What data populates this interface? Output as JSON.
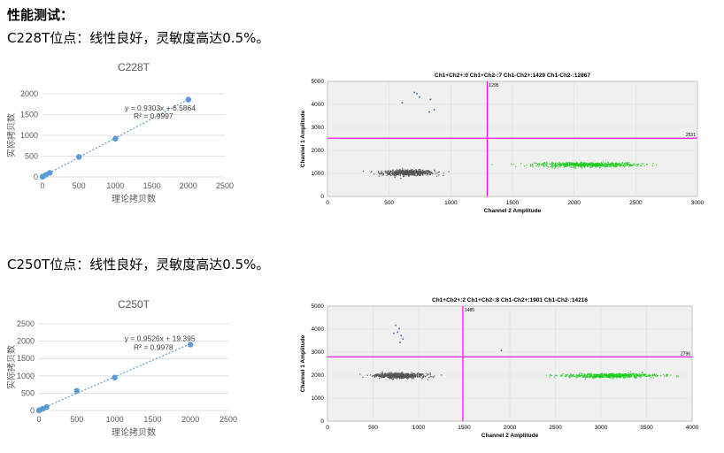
{
  "section_title": "性能测试：",
  "section1": {
    "line": "C228T位点：线性良好，灵敏度高达0.5%。"
  },
  "section2": {
    "line": "C250T位点：线性良好，灵敏度高达0.5%。"
  },
  "chart_data": [
    {
      "type": "scatter",
      "title": "C228T",
      "xlabel": "理论拷贝数",
      "ylabel": "实际拷贝数",
      "xlim": [
        0,
        2500
      ],
      "ylim": [
        0,
        2000
      ],
      "xticks": [
        "0",
        "500",
        "1000",
        "1500",
        "2000",
        "2500"
      ],
      "yticks": [
        "0",
        "500",
        "1000",
        "1500",
        "2000"
      ],
      "points": [
        [
          0,
          5
        ],
        [
          10,
          15
        ],
        [
          50,
          55
        ],
        [
          100,
          100
        ],
        [
          500,
          480
        ],
        [
          1000,
          920
        ],
        [
          2000,
          1860
        ]
      ],
      "trendline": {
        "slope": 0.9303,
        "intercept": 6.5864
      },
      "equation": "y = 0.9303x + 6.5864",
      "r2": "R² = 0.9997",
      "color": "#5b9bd5"
    },
    {
      "type": "scatter",
      "title": "C250T",
      "xlabel": "理论拷贝数",
      "ylabel": "实际拷贝数",
      "xlim": [
        0,
        2500
      ],
      "ylim": [
        0,
        2500
      ],
      "xticks": [
        "0",
        "500",
        "1000",
        "1500",
        "2000",
        "2500"
      ],
      "yticks": [
        "0",
        "500",
        "1000",
        "1500",
        "2000",
        "2500"
      ],
      "points": [
        [
          0,
          5
        ],
        [
          10,
          15
        ],
        [
          50,
          50
        ],
        [
          100,
          100
        ],
        [
          500,
          570
        ],
        [
          1000,
          950
        ],
        [
          2000,
          1900
        ]
      ],
      "trendline": {
        "slope": 0.9526,
        "intercept": 19.395
      },
      "equation": "y = 0.9526x + 19.395",
      "r2": "R² = 0.9978",
      "color": "#5b9bd5"
    },
    {
      "type": "scatter",
      "title": "Ch1+Ch2+:0  Ch1+Ch2-:7  Ch1-Ch2+:1429  Ch1-Ch2-:12867",
      "xlabel": "Channel 2 Amplitude",
      "ylabel": "Channel 1 Amplitude",
      "xlim": [
        0,
        3000
      ],
      "ylim": [
        0,
        5000
      ],
      "xticks": [
        "0",
        "500",
        "1000",
        "1500",
        "2000",
        "2500",
        "3000"
      ],
      "yticks": [
        "0",
        "1000",
        "2000",
        "3000",
        "4000",
        "5000"
      ],
      "threshold_x": 1295,
      "threshold_y": 2531,
      "threshold_x_label": "1295",
      "threshold_y_label": "2531",
      "clusters": [
        {
          "name": "Ch1-Ch2-",
          "cx": 650,
          "cy": 1050,
          "sx": 230,
          "sy": 130,
          "color": "#555555"
        },
        {
          "name": "Ch1-Ch2+",
          "cx": 2100,
          "cy": 1400,
          "sx": 450,
          "sy": 110,
          "color": "#22cc22"
        }
      ],
      "ch1_positive": [
        [
          720,
          4500
        ],
        [
          700,
          4550
        ],
        [
          740,
          4350
        ],
        [
          830,
          4250
        ],
        [
          600,
          4100
        ],
        [
          860,
          3800
        ],
        [
          820,
          3700
        ]
      ]
    },
    {
      "type": "scatter",
      "title": "Ch1+Ch2+:2  Ch1+Ch2-:8  Ch1-Ch2+:1901  Ch1-Ch2-:14216",
      "xlabel": "Channel 2 Amplitude",
      "ylabel": "Channel 1 Amplitude",
      "xlim": [
        0,
        4000
      ],
      "ylim": [
        0,
        5000
      ],
      "xticks": [
        "0",
        "500",
        "1000",
        "1500",
        "2000",
        "2500",
        "3000",
        "3500",
        "4000"
      ],
      "yticks": [
        "0",
        "1000",
        "2000",
        "3000",
        "4000",
        "5000"
      ],
      "threshold_x": 1485,
      "threshold_y": 2796,
      "threshold_x_label": "1485",
      "threshold_y_label": "2796",
      "clusters": [
        {
          "name": "Ch1-Ch2-",
          "cx": 780,
          "cy": 2000,
          "sx": 300,
          "sy": 120,
          "color": "#555555"
        },
        {
          "name": "Ch1-Ch2+",
          "cx": 3100,
          "cy": 2000,
          "sx": 550,
          "sy": 100,
          "color": "#22cc22"
        }
      ],
      "ch1_positive": [
        [
          740,
          4200
        ],
        [
          780,
          4050
        ],
        [
          760,
          3900
        ],
        [
          800,
          3750
        ],
        [
          720,
          3850
        ],
        [
          820,
          3600
        ],
        [
          790,
          3450
        ],
        [
          1900,
          3100
        ]
      ]
    }
  ]
}
